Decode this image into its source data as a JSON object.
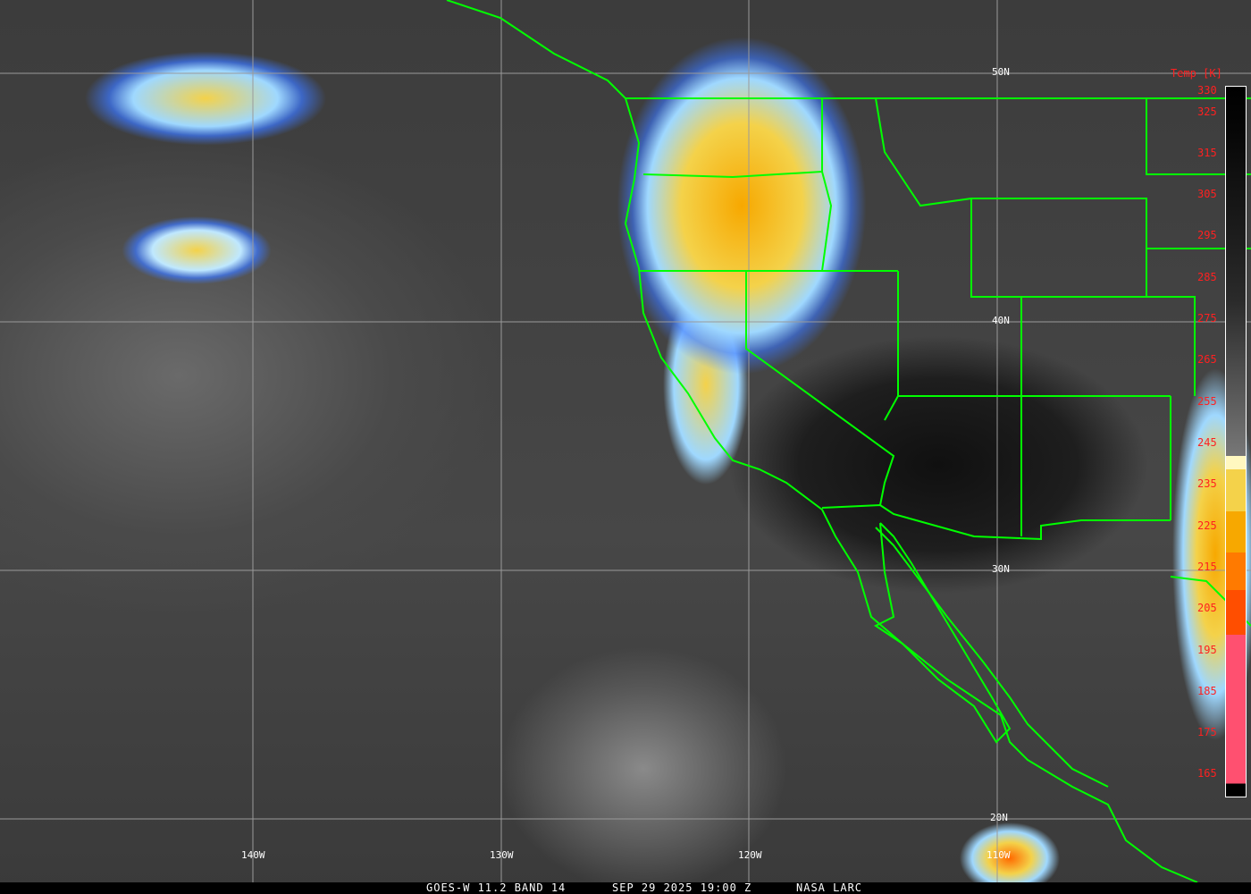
{
  "caption": {
    "satellite_band": "GOES-W 11.2 BAND 14",
    "datetime": "SEP 29 2025 19:00 Z",
    "credit": "NASA LARC"
  },
  "colorbar": {
    "title": "Temp [K]",
    "ticks": [
      "330",
      "325",
      "315",
      "305",
      "295",
      "285",
      "275",
      "265",
      "255",
      "245",
      "235",
      "225",
      "215",
      "205",
      "195",
      "185",
      "175",
      "165"
    ],
    "colors": {
      "blue": "#3a7dff",
      "light_blue": "#8cc4ff",
      "pale_blue": "#bfefff",
      "cream": "#fff8c0",
      "yellow": "#f4d24a",
      "orange": "#f7a800",
      "dark_orange": "#ff7a00",
      "red_orange": "#ff4e00",
      "pink": "#ff5070"
    }
  },
  "grid": {
    "longitudes": [
      "140W",
      "130W",
      "120W",
      "110W"
    ],
    "latitudes": [
      "50N",
      "40N",
      "30N",
      "20N"
    ]
  },
  "border_color": "#00ff00"
}
